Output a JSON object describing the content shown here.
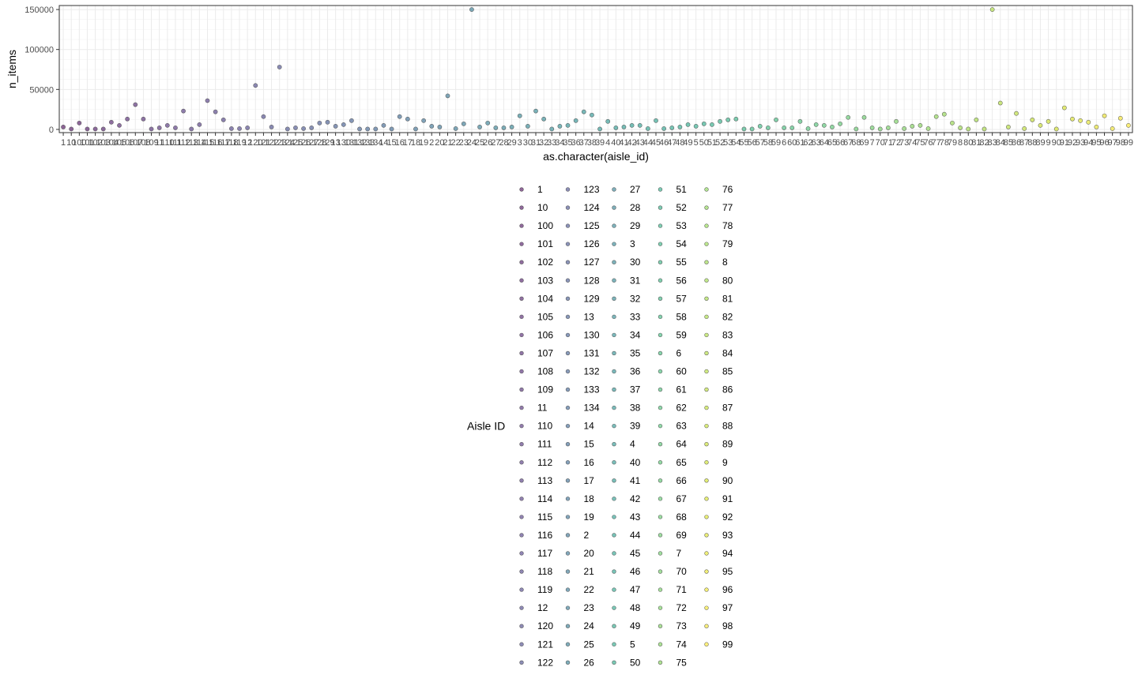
{
  "chart_data": {
    "type": "scatter",
    "xlabel": "as.character(aisle_id)",
    "ylabel": "n_items",
    "ylim": [
      -4000,
      155000
    ],
    "yticks": [
      0,
      50000,
      100000,
      150000
    ],
    "ytick_labels": [
      "0",
      "50000",
      "100000",
      "150000"
    ],
    "grid": true,
    "legend_title": "Aisle ID",
    "legend_position": "bottom",
    "categories": [
      "1",
      "10",
      "100",
      "101",
      "102",
      "103",
      "104",
      "105",
      "106",
      "107",
      "108",
      "109",
      "11",
      "110",
      "111",
      "112",
      "113",
      "114",
      "115",
      "116",
      "117",
      "118",
      "119",
      "12",
      "120",
      "121",
      "122",
      "123",
      "124",
      "125",
      "126",
      "127",
      "128",
      "129",
      "13",
      "130",
      "131",
      "132",
      "133",
      "134",
      "14",
      "15",
      "16",
      "17",
      "18",
      "19",
      "2",
      "20",
      "21",
      "22",
      "23",
      "24",
      "25",
      "26",
      "27",
      "28",
      "29",
      "3",
      "30",
      "31",
      "32",
      "33",
      "34",
      "35",
      "36",
      "37",
      "38",
      "39",
      "4",
      "40",
      "41",
      "42",
      "43",
      "44",
      "45",
      "46",
      "47",
      "48",
      "49",
      "5",
      "50",
      "51",
      "52",
      "53",
      "54",
      "55",
      "56",
      "57",
      "58",
      "59",
      "6",
      "60",
      "61",
      "62",
      "63",
      "64",
      "65",
      "66",
      "67",
      "68",
      "69",
      "7",
      "70",
      "71",
      "72",
      "73",
      "74",
      "75",
      "76",
      "77",
      "78",
      "79",
      "8",
      "80",
      "81",
      "82",
      "83",
      "84",
      "85",
      "86",
      "87",
      "88",
      "89",
      "9",
      "90",
      "91",
      "92",
      "93",
      "94",
      "95",
      "96",
      "97",
      "98",
      "99"
    ],
    "values": [
      3000,
      500,
      8000,
      500,
      500,
      500,
      9000,
      5000,
      13000,
      31000,
      13000,
      500,
      2000,
      5000,
      2000,
      23000,
      500,
      6000,
      36000,
      22000,
      12000,
      1000,
      1000,
      2000,
      55000,
      16000,
      3000,
      78000,
      500,
      2000,
      1000,
      2000,
      8000,
      9000,
      4000,
      6000,
      11000,
      500,
      500,
      500,
      5000,
      500,
      16000,
      13000,
      500,
      11000,
      4000,
      3000,
      42000,
      1000,
      7000,
      150000,
      3000,
      8000,
      2000,
      2000,
      3000,
      17000,
      4000,
      23000,
      13000,
      500,
      4000,
      5000,
      11000,
      22000,
      18000,
      500,
      10000,
      2000,
      3000,
      5000,
      5000,
      1000,
      11000,
      1000,
      2000,
      3000,
      6000,
      4000,
      7000,
      6000,
      10000,
      12000,
      13000,
      500,
      500,
      4000,
      2000,
      12000,
      2000,
      2000,
      10000,
      1000,
      6000,
      5000,
      3000,
      7000,
      15000,
      500,
      15000,
      2000,
      500,
      2000,
      10000,
      1000,
      4000,
      5000,
      1000,
      16000,
      19000,
      8000,
      2000,
      500,
      12000,
      500,
      150000,
      33000,
      3000,
      20000,
      1000,
      12000,
      5000,
      10000,
      500,
      27000,
      13000,
      11000,
      9000,
      3000,
      17000,
      1000,
      14000,
      5000
    ],
    "palette": [
      "#440154",
      "#481a6c",
      "#472f7d",
      "#414487",
      "#39568c",
      "#31688e",
      "#2a788e",
      "#23888e",
      "#1f988b",
      "#22a884",
      "#35b779",
      "#54c568",
      "#7ad151",
      "#a5db36",
      "#d2e21b",
      "#fde725"
    ]
  }
}
